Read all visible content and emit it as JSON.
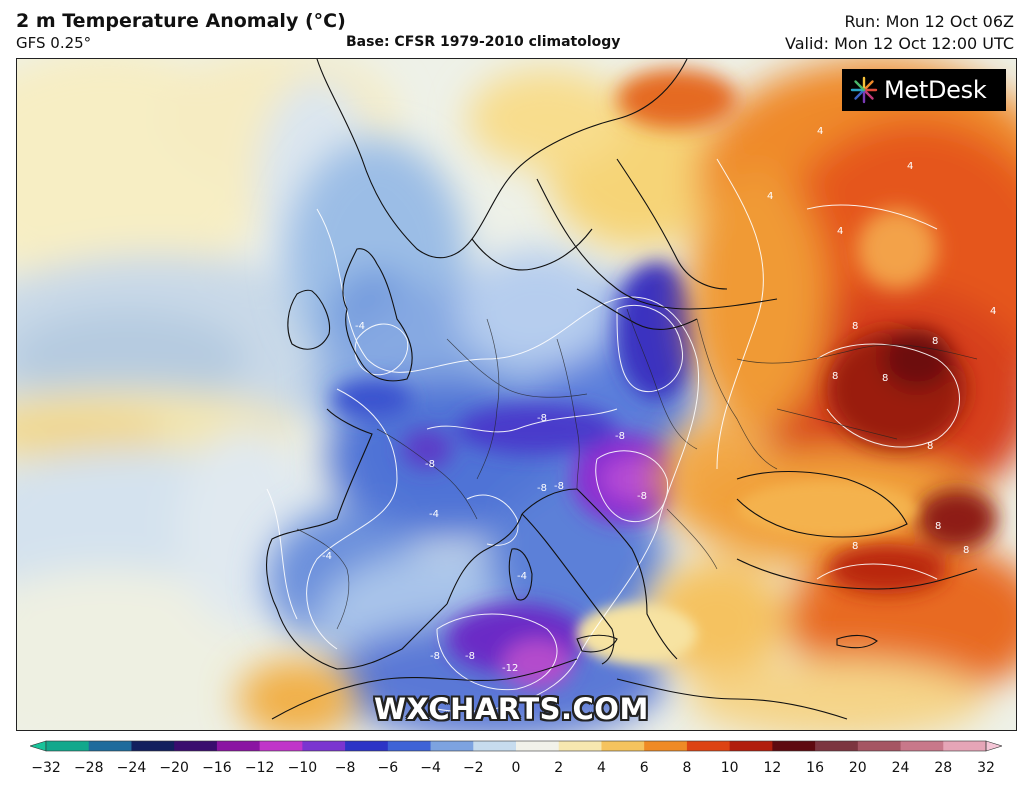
{
  "header": {
    "title": "2 m Temperature Anomaly (°C)",
    "subtitle": "GFS 0.25°",
    "base": "Base: CFSR 1979-2010 climatology",
    "run": "Run: Mon 12 Oct 06Z",
    "valid": "Valid: Mon 12 Oct 12:00 UTC"
  },
  "logo": {
    "text": "MetDesk",
    "icon": "starburst-logo-icon"
  },
  "watermark": "WXCHARTS.COM",
  "colorbar": {
    "ticks": [
      -32,
      -28,
      -24,
      -20,
      -16,
      -12,
      -10,
      -8,
      -6,
      -4,
      -2,
      0,
      2,
      4,
      6,
      8,
      10,
      12,
      16,
      20,
      24,
      28,
      32
    ],
    "colors": [
      "#12a88c",
      "#1f6b9c",
      "#13205e",
      "#3a0d6e",
      "#8a14a2",
      "#c035c9",
      "#7a35d0",
      "#2c34c6",
      "#3e63d6",
      "#7da3e0",
      "#c7dcee",
      "#f2f2ea",
      "#f6e7b0",
      "#f5c35e",
      "#ef8a25",
      "#dd4313",
      "#b11d0c",
      "#5e0a10",
      "#7c3540",
      "#a55563",
      "#c8788a",
      "#e6a5b7"
    ],
    "end_left_color": "#19c39a",
    "end_right_color": "#f4c6d6"
  },
  "map": {
    "contour_labels": [
      "4",
      "4",
      "4",
      "4",
      "8",
      "8",
      "8",
      "8",
      "8",
      "-8",
      "-8",
      "-8",
      "-8",
      "-8",
      "-4",
      "-4",
      "-4",
      "-4",
      "-12",
      "-8",
      "4",
      "-8",
      "-8",
      "8",
      "8",
      "8"
    ]
  }
}
